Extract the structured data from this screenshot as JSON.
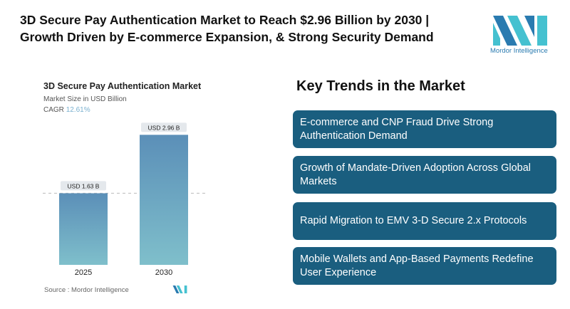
{
  "title": "3D Secure Pay Authentication Market to Reach $2.96 Billion by 2030 | Growth Driven by E-commerce Expansion, & Strong Security Demand",
  "logo": {
    "text": "Mordor Intelligence",
    "colors": [
      "#2a7bb0",
      "#45c1d0"
    ]
  },
  "chart_data": {
    "type": "bar",
    "title": "3D Secure Pay Authentication Market",
    "subtitle": "Market Size in USD Billion",
    "cagr_label": "CAGR",
    "cagr_value": "12.61%",
    "categories": [
      "2025",
      "2030"
    ],
    "values": [
      1.63,
      2.96
    ],
    "data_labels": [
      "USD 1.63 B",
      "USD 2.96 B"
    ],
    "ylim": [
      0,
      3.2
    ],
    "grid": false,
    "bar_colors": [
      "#5b8fb8",
      "#7fbfcb"
    ],
    "source": "Source :  Mordor Intelligence"
  },
  "trends": {
    "heading": "Key Trends in the Market",
    "items": [
      "E-commerce and CNP Fraud Drive Strong Authentication Demand",
      "Growth of Mandate-Driven Adoption Across Global Markets",
      "Rapid Migration to EMV 3-D Secure 2.x Protocols",
      "Mobile Wallets and App-Based Payments Redefine User Experience"
    ],
    "card_color": "#1a5e7f"
  }
}
